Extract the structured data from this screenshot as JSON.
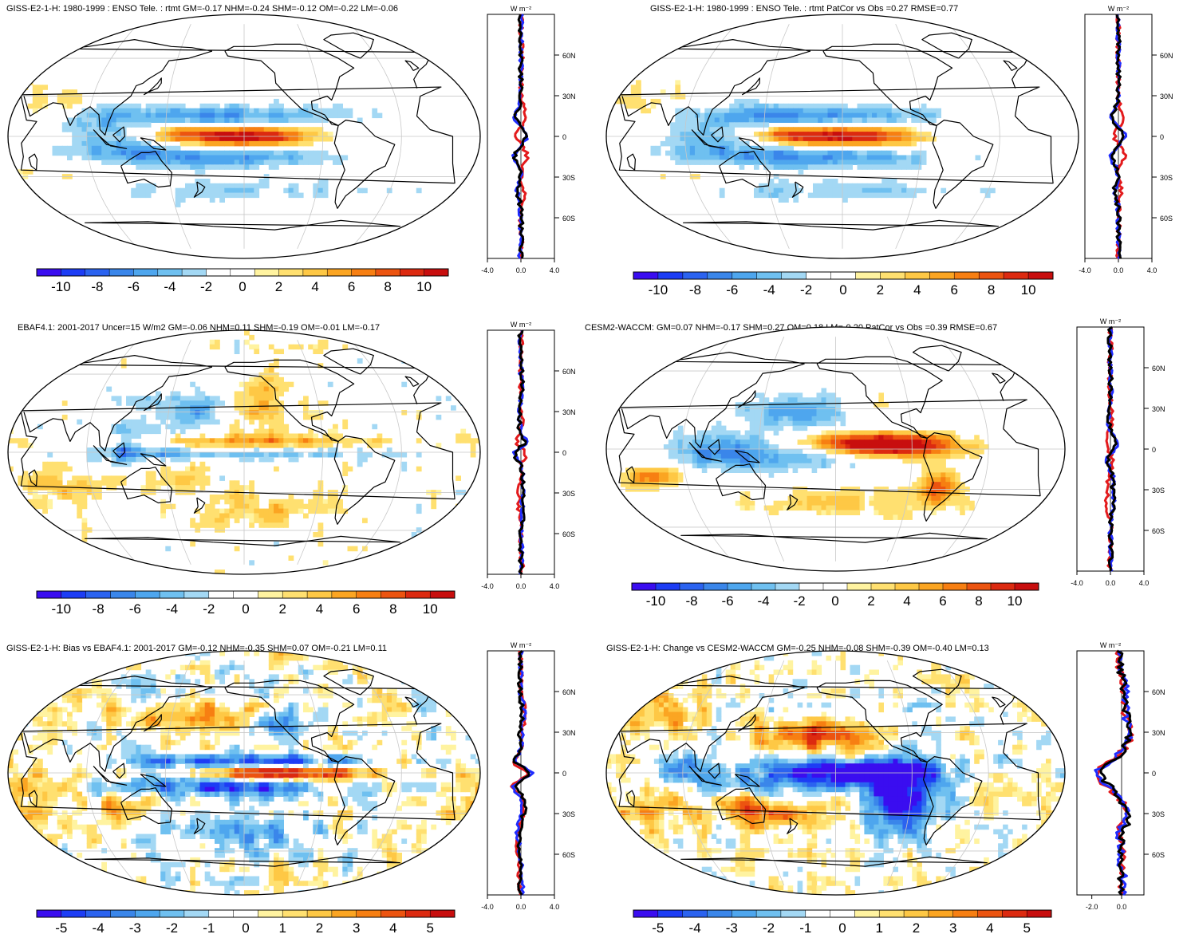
{
  "figure": {
    "colors": {
      "palette": [
        "#3a0df0",
        "#1d3df5",
        "#2b63f0",
        "#3a86ea",
        "#4ea6ee",
        "#6fc0f0",
        "#a3d8f4",
        "#ffffff",
        "#ffffff",
        "#fff3a0",
        "#ffe070",
        "#fec845",
        "#fba522",
        "#f77f12",
        "#ec5410",
        "#dc2a10",
        "#c80e0e"
      ],
      "ocean_bg": "#ffffff",
      "graticule": "#c8c8c8",
      "coast": "#000000",
      "series_red": "#e31a1c",
      "series_blue": "#1f2cff",
      "series_black": "#000000"
    },
    "profile_unit": "W m⁻²",
    "latitude_ticks": [
      "60N",
      "30N",
      "0",
      "30S",
      "60S"
    ],
    "panels": [
      {
        "id": "p1",
        "title": "GISS-E2-1-H: 1980-1999 : ENSO Tele. : rtmt GM=-0.17 NHM=-0.24 SHM=-0.12 OM=-0.22 LM=-0.06",
        "colorbar_labels": [
          "-10",
          "-8",
          "-6",
          "-4",
          "-2",
          "0",
          "2",
          "4",
          "6",
          "8",
          "10"
        ],
        "profile_xticks": [
          "-4.0",
          "0.0",
          "4.0"
        ],
        "profile_xrange": [
          -4,
          4
        ],
        "pattern": "enso_model"
      },
      {
        "id": "p2",
        "title": "GISS-E2-1-H: 1980-1999 : ENSO Tele. : rtmt PatCor vs Obs =0.27 RMSE=0.77",
        "colorbar_labels": [
          "-10",
          "-8",
          "-6",
          "-4",
          "-2",
          "0",
          "2",
          "4",
          "6",
          "8",
          "10"
        ],
        "profile_xticks": [
          "-4.0",
          "0.0",
          "4.0"
        ],
        "profile_xrange": [
          -4,
          4
        ],
        "pattern": "enso_model"
      },
      {
        "id": "p3",
        "title": "EBAF4.1: 2001-2017 Uncer=15 W/m2 GM=-0.06 NHM=0.11 SHM=-0.19 OM=-0.01 LM=-0.17",
        "colorbar_labels": [
          "-10",
          "-8",
          "-6",
          "-4",
          "-2",
          "0",
          "2",
          "4",
          "6",
          "8",
          "10"
        ],
        "profile_xticks": [
          "-4.0",
          "0.0",
          "4.0"
        ],
        "profile_xrange": [
          -4,
          4
        ],
        "pattern": "obs"
      },
      {
        "id": "p4",
        "title": "CESM2-WACCM: GM=0.07 NHM=-0.17 SHM=0.27 OM=0.18 LM=-0.20 PatCor vs Obs =0.39 RMSE=0.67",
        "colorbar_labels": [
          "-10",
          "-8",
          "-6",
          "-4",
          "-2",
          "0",
          "2",
          "4",
          "6",
          "8",
          "10"
        ],
        "profile_xticks": [
          "-4.0",
          "0.0",
          "4.0"
        ],
        "profile_xrange": [
          -4,
          4
        ],
        "pattern": "cesm"
      },
      {
        "id": "p5",
        "title": "GISS-E2-1-H: Bias vs EBAF4.1: 2001-2017 GM=-0.12 NHM=-0.35 SHM=0.07 OM=-0.21 LM=0.11",
        "colorbar_labels": [
          "-5",
          "-4",
          "-3",
          "-2",
          "-1",
          "0",
          "1",
          "2",
          "3",
          "4",
          "5"
        ],
        "profile_xticks": [
          "-4.0",
          "0.0",
          "4.0"
        ],
        "profile_xrange": [
          -4,
          4
        ],
        "pattern": "bias"
      },
      {
        "id": "p6",
        "title": "GISS-E2-1-H: Change vs CESM2-WACCM GM=-0.25 NHM=-0.08 SHM=-0.39 OM=-0.40 LM=0.13",
        "colorbar_labels": [
          "-5",
          "-4",
          "-3",
          "-2",
          "-1",
          "0",
          "1",
          "2",
          "3",
          "4",
          "5"
        ],
        "profile_xticks": [
          "-2.0",
          "0.0"
        ],
        "profile_xrange": [
          -3,
          1.5
        ],
        "pattern": "change"
      }
    ]
  }
}
